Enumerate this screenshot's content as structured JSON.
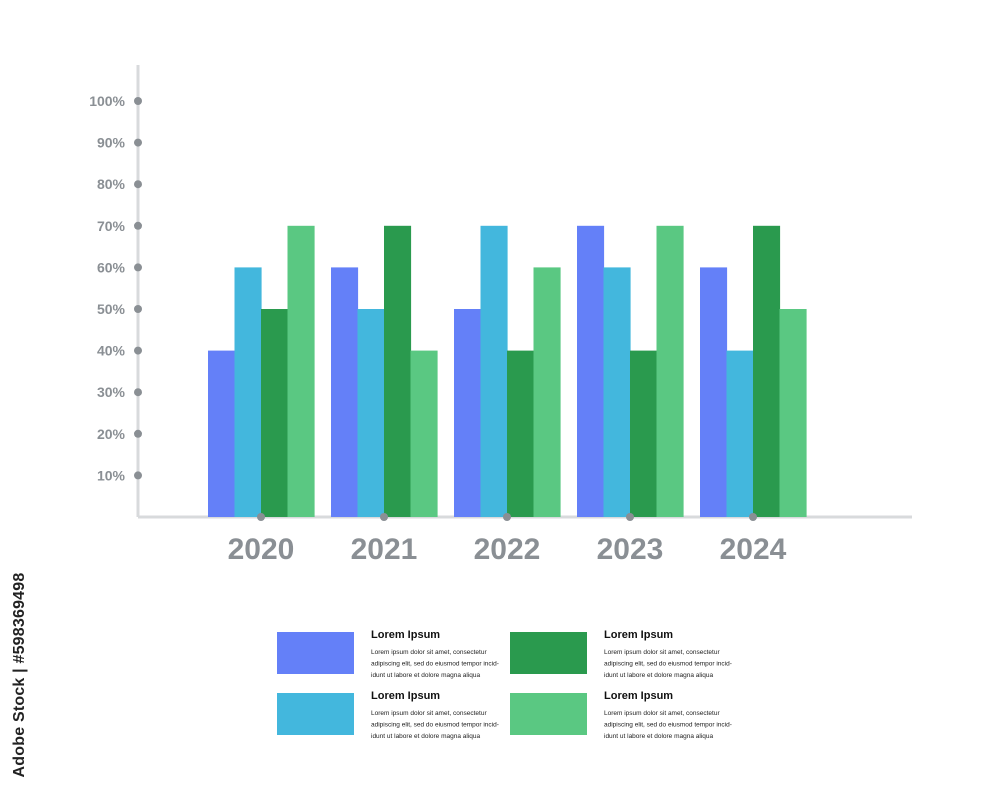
{
  "chart_data": {
    "type": "bar",
    "categories": [
      "2020",
      "2021",
      "2022",
      "2023",
      "2024"
    ],
    "series": [
      {
        "color": "#6480f8",
        "values": [
          40,
          60,
          50,
          70,
          60
        ]
      },
      {
        "color": "#43b7dd",
        "values": [
          60,
          50,
          70,
          60,
          40
        ]
      },
      {
        "color": "#2a9a4e",
        "values": [
          50,
          70,
          40,
          40,
          70
        ]
      },
      {
        "color": "#5ac882",
        "values": [
          70,
          40,
          60,
          70,
          50
        ]
      }
    ],
    "ylim": [
      0,
      100
    ],
    "yticks": [
      {
        "value": 10,
        "label": "10%"
      },
      {
        "value": 20,
        "label": "20%"
      },
      {
        "value": 30,
        "label": "30%"
      },
      {
        "value": 40,
        "label": "40%"
      },
      {
        "value": 50,
        "label": "50%"
      },
      {
        "value": 60,
        "label": "60%"
      },
      {
        "value": 70,
        "label": "70%"
      },
      {
        "value": 80,
        "label": "80%"
      },
      {
        "value": 90,
        "label": "90%"
      },
      {
        "value": 100,
        "label": "100%"
      }
    ],
    "grid": false,
    "legend_position": "bottom",
    "title": "",
    "xlabel": "",
    "ylabel": ""
  },
  "legend": {
    "items": [
      {
        "title": "Lorem Ipsum",
        "color": "#6480f8",
        "lines": [
          "Lorem ipsum dolor sit amet, consectetur",
          "adipiscing elit, sed do eiusmod tempor incid-",
          "idunt ut labore et dolore magna aliqua"
        ]
      },
      {
        "title": "Lorem Ipsum",
        "color": "#2a9a4e",
        "lines": [
          "Lorem ipsum dolor sit amet, consectetur",
          "adipiscing elit, sed do eiusmod tempor incid-",
          "idunt ut labore et dolore magna aliqua"
        ]
      },
      {
        "title": "Lorem Ipsum",
        "color": "#43b7dd",
        "lines": [
          "Lorem ipsum dolor sit amet, consectetur",
          "adipiscing elit, sed do eiusmod tempor incid-",
          "idunt ut labore et dolore magna aliqua"
        ]
      },
      {
        "title": "Lorem Ipsum",
        "color": "#5ac882",
        "lines": [
          "Lorem ipsum dolor sit amet, consectetur",
          "adipiscing elit, sed do eiusmod tempor incid-",
          "idunt ut labore et dolore magna aliqua"
        ]
      }
    ]
  },
  "watermark": {
    "text": "Adobe Stock | #598369498"
  },
  "colors": {
    "axis": "#d8dadc",
    "tick_dot": "#8a8f94",
    "tick_text": "#8a8f94"
  }
}
